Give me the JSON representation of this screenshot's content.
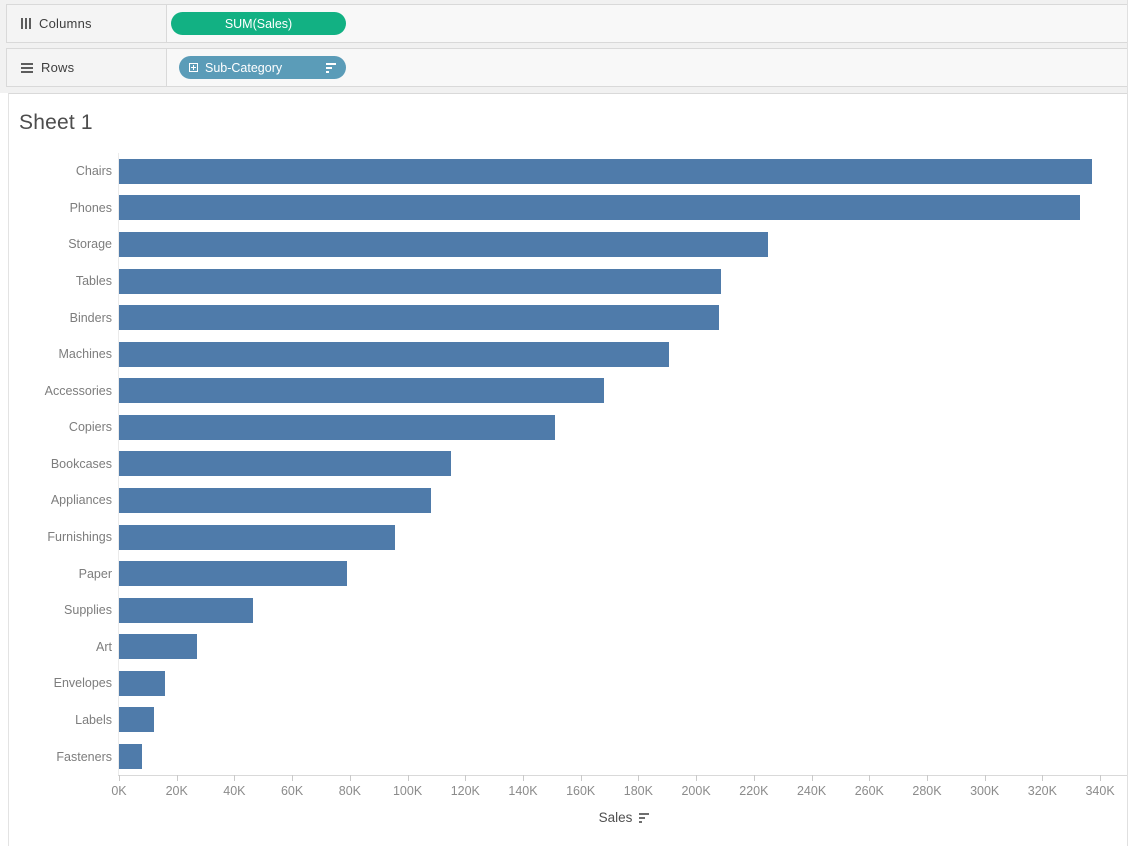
{
  "shelves": {
    "columns": {
      "label": "Columns",
      "pill_label": "SUM(Sales)"
    },
    "rows": {
      "label": "Rows",
      "pill_label": "Sub-Category"
    }
  },
  "sheet": {
    "title": "Sheet 1"
  },
  "icons": {
    "columns_shelf": "columns-grid-icon",
    "rows_shelf": "rows-list-icon",
    "dimension_pill_expand": "expand-plus-icon",
    "dimension_pill_sort": "sort-descending-icon",
    "axis_sort": "sort-descending-icon"
  },
  "colors": {
    "bar": "#4f7baa",
    "measure_pill": "#12b183",
    "dimension_pill": "#5b9cb8"
  },
  "chart_data": {
    "type": "bar",
    "orientation": "horizontal",
    "title": "Sheet 1",
    "xlabel": "Sales",
    "ylabel": "Sub-Category",
    "sort": "descending",
    "grid": false,
    "legend": false,
    "xlim": [
      0,
      350000
    ],
    "x_ticks": [
      "0K",
      "20K",
      "40K",
      "60K",
      "80K",
      "100K",
      "120K",
      "140K",
      "160K",
      "180K",
      "200K",
      "220K",
      "240K",
      "260K",
      "280K",
      "300K",
      "320K",
      "340K"
    ],
    "categories": [
      "Chairs",
      "Phones",
      "Storage",
      "Tables",
      "Binders",
      "Machines",
      "Accessories",
      "Copiers",
      "Bookcases",
      "Appliances",
      "Furnishings",
      "Paper",
      "Supplies",
      "Art",
      "Envelopes",
      "Labels",
      "Fasteners"
    ],
    "values": [
      337000,
      333000,
      225000,
      208500,
      208000,
      190500,
      168000,
      151000,
      115000,
      108000,
      95500,
      79000,
      46500,
      27000,
      16000,
      12000,
      8000
    ]
  }
}
